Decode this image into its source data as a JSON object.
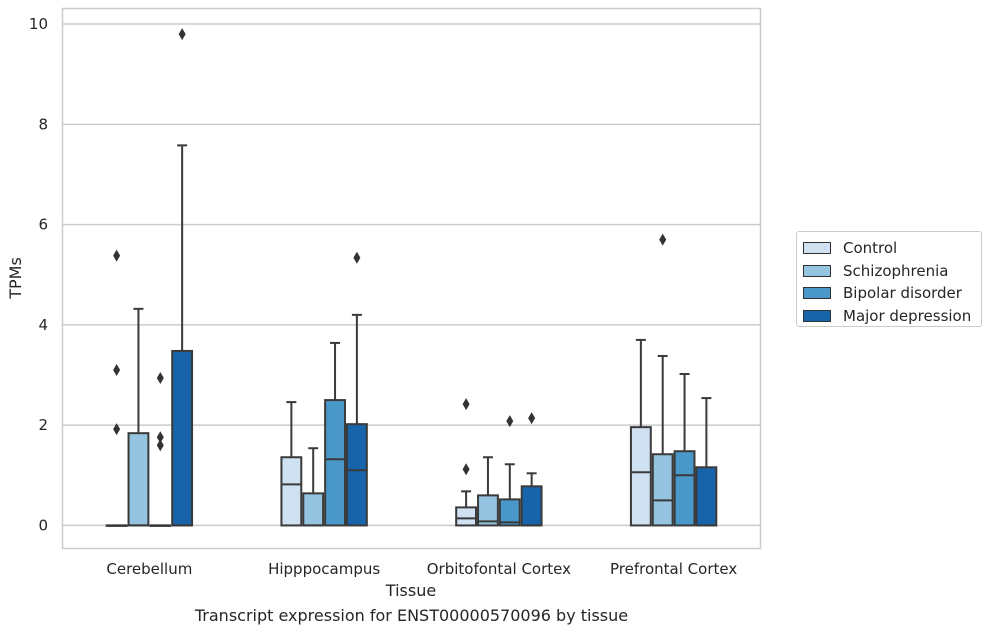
{
  "caption": "Transcript expression for ENST00000570096 by tissue",
  "chart_data": {
    "type": "box",
    "xlabel": "Tissue",
    "ylabel": "TPMs",
    "ylim": [
      -0.45,
      10.3
    ],
    "yticks": [
      0,
      2,
      4,
      6,
      8,
      10
    ],
    "grid": "horizontal",
    "legend_position": "right",
    "categories": [
      "Cerebellum",
      "Hipppocampus",
      "Orbitofontal Cortex",
      "Prefrontal Cortex"
    ],
    "series": [
      {
        "name": "Control",
        "color": "#d0e1f2",
        "boxes": [
          {
            "q1": 0,
            "median": 0,
            "q3": 0,
            "whisker_low": 0,
            "whisker_high": 0,
            "outliers": [
              1.92,
              3.1,
              5.38
            ]
          },
          {
            "q1": 0,
            "median": 0.82,
            "q3": 1.36,
            "whisker_low": 0,
            "whisker_high": 2.46,
            "outliers": []
          },
          {
            "q1": 0,
            "median": 0.14,
            "q3": 0.36,
            "whisker_low": 0,
            "whisker_high": 0.68,
            "outliers": [
              1.12,
              2.42
            ]
          },
          {
            "q1": 0,
            "median": 1.06,
            "q3": 1.96,
            "whisker_low": 0,
            "whisker_high": 3.7,
            "outliers": []
          }
        ]
      },
      {
        "name": "Schizophrenia",
        "color": "#94c4df",
        "boxes": [
          {
            "q1": 0,
            "median": 0,
            "q3": 1.84,
            "whisker_low": 0,
            "whisker_high": 4.32,
            "outliers": []
          },
          {
            "q1": 0,
            "median": 0,
            "q3": 0.64,
            "whisker_low": 0,
            "whisker_high": 1.54,
            "outliers": []
          },
          {
            "q1": 0,
            "median": 0.08,
            "q3": 0.6,
            "whisker_low": 0,
            "whisker_high": 1.36,
            "outliers": []
          },
          {
            "q1": 0,
            "median": 0.5,
            "q3": 1.42,
            "whisker_low": 0,
            "whisker_high": 3.38,
            "outliers": [
              5.7
            ]
          }
        ]
      },
      {
        "name": "Bipolar disorder",
        "color": "#4a98c9",
        "boxes": [
          {
            "q1": 0,
            "median": 0,
            "q3": 0,
            "whisker_low": 0,
            "whisker_high": 0,
            "outliers": [
              1.6,
              1.76,
              2.94
            ]
          },
          {
            "q1": 0,
            "median": 1.32,
            "q3": 2.5,
            "whisker_low": 0,
            "whisker_high": 3.64,
            "outliers": []
          },
          {
            "q1": 0,
            "median": 0.06,
            "q3": 0.52,
            "whisker_low": 0,
            "whisker_high": 1.22,
            "outliers": [
              2.08
            ]
          },
          {
            "q1": 0,
            "median": 1.0,
            "q3": 1.48,
            "whisker_low": 0,
            "whisker_high": 3.02,
            "outliers": []
          }
        ]
      },
      {
        "name": "Major depression",
        "color": "#1764ab",
        "boxes": [
          {
            "q1": 0,
            "median": 0,
            "q3": 3.48,
            "whisker_low": 0,
            "whisker_high": 7.58,
            "outliers": [
              9.8
            ]
          },
          {
            "q1": 0,
            "median": 1.1,
            "q3": 2.02,
            "whisker_low": 0,
            "whisker_high": 4.2,
            "outliers": [
              5.34
            ]
          },
          {
            "q1": 0,
            "median": 0,
            "q3": 0.78,
            "whisker_low": 0,
            "whisker_high": 1.04,
            "outliers": [
              2.14
            ]
          },
          {
            "q1": 0,
            "median": 0,
            "q3": 1.16,
            "whisker_low": 0,
            "whisker_high": 2.54,
            "outliers": []
          }
        ]
      }
    ]
  }
}
